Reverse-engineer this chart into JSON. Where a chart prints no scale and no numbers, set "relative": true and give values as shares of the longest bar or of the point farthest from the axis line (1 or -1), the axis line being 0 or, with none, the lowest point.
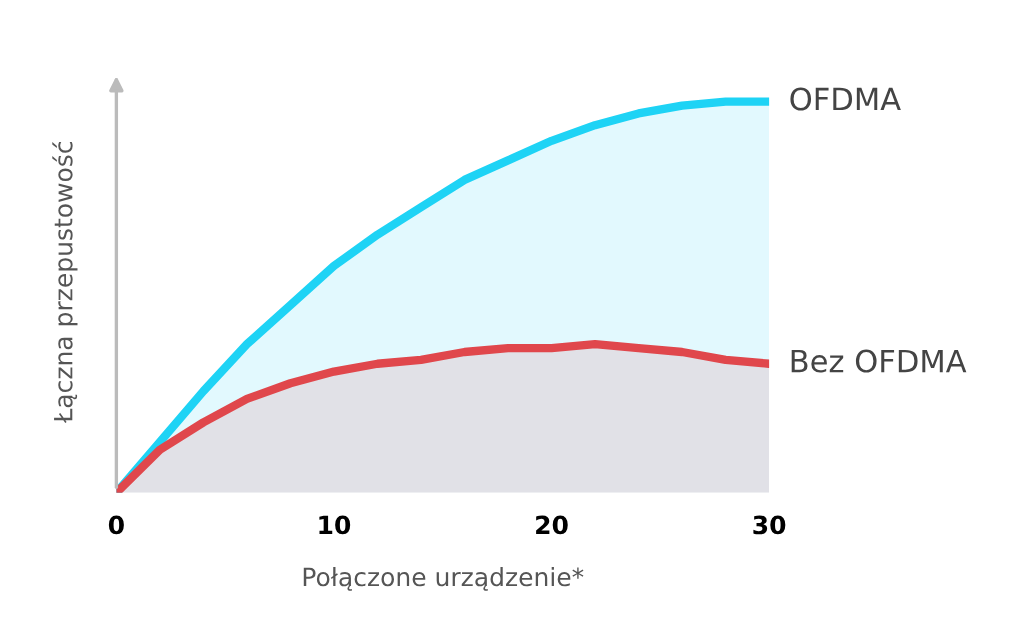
{
  "chart_data": {
    "type": "area",
    "relative": true,
    "xlabel": "Połączone urządzenie*",
    "ylabel": "Łączna przepustowość",
    "xlim": [
      0,
      30
    ],
    "xticks": [
      0,
      10,
      20,
      30
    ],
    "legend": false,
    "grid": false,
    "series": [
      {
        "name": "OFDMA",
        "color": "#1ed3f5",
        "x": [
          0,
          2,
          4,
          6,
          8,
          10,
          12,
          14,
          16,
          18,
          20,
          22,
          24,
          26,
          28,
          30
        ],
        "values": [
          0,
          0.13,
          0.26,
          0.38,
          0.48,
          0.58,
          0.66,
          0.73,
          0.8,
          0.85,
          0.9,
          0.94,
          0.97,
          0.99,
          1.0,
          1.0
        ]
      },
      {
        "name": "Bez OFDMA",
        "color": "#e0474c",
        "x": [
          0,
          2,
          4,
          6,
          8,
          10,
          12,
          14,
          16,
          18,
          20,
          22,
          24,
          26,
          28,
          30
        ],
        "values": [
          0,
          0.11,
          0.18,
          0.24,
          0.28,
          0.31,
          0.33,
          0.34,
          0.36,
          0.37,
          0.37,
          0.38,
          0.37,
          0.36,
          0.34,
          0.33
        ]
      }
    ]
  }
}
